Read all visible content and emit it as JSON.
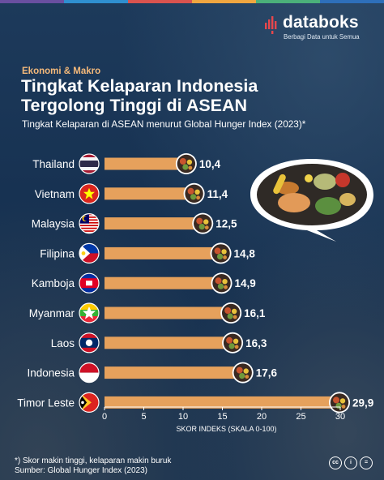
{
  "brand": {
    "name": "databoks",
    "tagline": "Berbagi Data untuk Semua"
  },
  "header": {
    "category": "Ekonomi & Makro",
    "title_line1": "Tingkat Kelaparan Indonesia",
    "title_line2": "Tergolong Tinggi di ASEAN",
    "subtitle": "Tingkat Kelaparan di ASEAN menurut Global Hunger Index (2023)*"
  },
  "footer": {
    "note": "*) Skor makin tinggi, kelaparan makin buruk",
    "source": "Sumber: Global Hunger Index (2023)",
    "license_icons": [
      "cc-icon",
      "by-icon",
      "nd-icon"
    ]
  },
  "colors": {
    "bar": "#e6a15c",
    "accent": "#f4b97a",
    "topbar": [
      "#6a4fa0",
      "#2f8fd0",
      "#d9534f",
      "#f0a640",
      "#4bb07a",
      "#2e6fba"
    ]
  },
  "chart_data": {
    "type": "bar",
    "orientation": "horizontal",
    "categories": [
      "Thailand",
      "Vietnam",
      "Malaysia",
      "Filipina",
      "Kamboja",
      "Myanmar",
      "Laos",
      "Indonesia",
      "Timor Leste"
    ],
    "values": [
      10.4,
      11.4,
      12.5,
      14.8,
      14.9,
      16.1,
      16.3,
      17.6,
      29.9
    ],
    "value_labels": [
      "10,4",
      "11,4",
      "12,5",
      "14,8",
      "14,9",
      "16,1",
      "16,3",
      "17,6",
      "29,9"
    ],
    "flags": [
      "thailand-flag-icon",
      "vietnam-flag-icon",
      "malaysia-flag-icon",
      "philippines-flag-icon",
      "cambodia-flag-icon",
      "myanmar-flag-icon",
      "laos-flag-icon",
      "indonesia-flag-icon",
      "timor-leste-flag-icon"
    ],
    "xlabel": "SKOR INDEKS (SKALA 0-100)",
    "xlim": [
      0,
      30
    ],
    "xticks": [
      0,
      5,
      10,
      15,
      20,
      25,
      30
    ],
    "grid": false,
    "legend": "none"
  }
}
